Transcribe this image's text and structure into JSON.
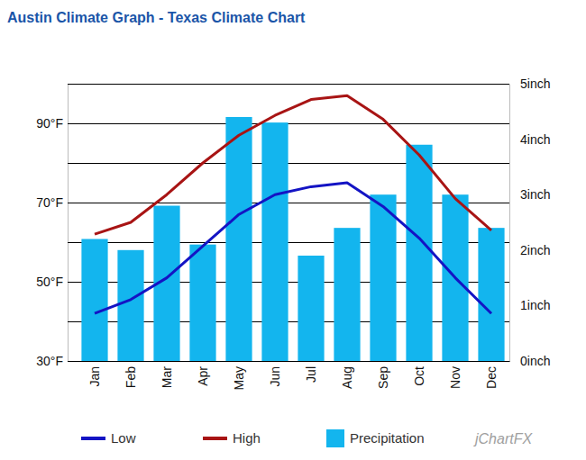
{
  "chart_data": {
    "type": "bar",
    "title": "Austin Climate Graph - Texas Climate Chart",
    "categories": [
      "Jan",
      "Feb",
      "Mar",
      "Apr",
      "May",
      "Jun",
      "Jul",
      "Aug",
      "Sep",
      "Oct",
      "Nov",
      "Dec"
    ],
    "series": [
      {
        "name": "Low",
        "type": "line",
        "color": "#1414c4",
        "values": [
          42,
          45.5,
          51,
          59,
          67,
          72,
          74,
          75,
          69,
          61,
          51,
          42
        ]
      },
      {
        "name": "High",
        "type": "line",
        "color": "#a81414",
        "values": [
          62,
          65,
          72,
          80,
          87,
          92,
          96,
          97,
          91,
          82,
          71,
          63
        ]
      },
      {
        "name": "Precipitation",
        "type": "bar",
        "color": "#13b5ee",
        "axis": "y2",
        "values": [
          2.2,
          2.0,
          2.8,
          2.1,
          4.4,
          4.3,
          1.9,
          2.4,
          3.0,
          3.9,
          3.0,
          2.4
        ]
      }
    ],
    "ylim": [
      30,
      100
    ],
    "yticks": [
      {
        "value": 30,
        "label": "30°F"
      },
      {
        "value": 40,
        "label": null
      },
      {
        "value": 50,
        "label": "50°F"
      },
      {
        "value": 60,
        "label": null
      },
      {
        "value": 70,
        "label": "70°F"
      },
      {
        "value": 80,
        "label": null
      },
      {
        "value": 90,
        "label": "90°F"
      },
      {
        "value": 100,
        "label": null
      }
    ],
    "y2lim": [
      0,
      5
    ],
    "y2ticks": [
      {
        "value": 0,
        "label": "0inch"
      },
      {
        "value": 1,
        "label": "1inch"
      },
      {
        "value": 2,
        "label": "2inch"
      },
      {
        "value": 3,
        "label": "3inch"
      },
      {
        "value": 4,
        "label": "4inch"
      },
      {
        "value": 5,
        "label": "5inch"
      }
    ],
    "grid": true,
    "legend": "bottom",
    "annotations": [
      "jChartFX"
    ]
  }
}
